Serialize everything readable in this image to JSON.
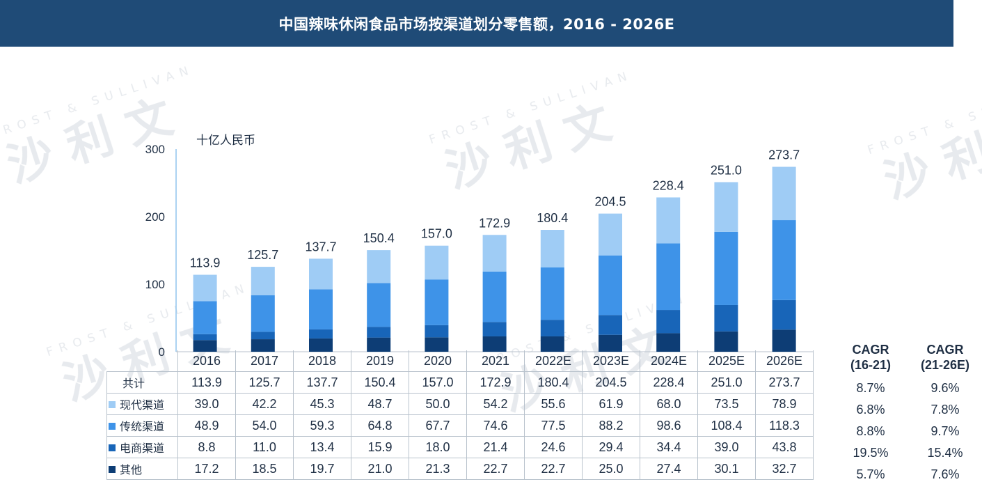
{
  "header": {
    "title": "中国辣味休闲食品市场按渠道划分零售额，2016 - 2026E"
  },
  "watermark": {
    "cn": "沙 利 文",
    "en": "FROST & SULLIVAN"
  },
  "chart_data": {
    "type": "bar",
    "stacked": true,
    "unit_label": "十亿人民币",
    "categories": [
      "2016",
      "2017",
      "2018",
      "2019",
      "2020",
      "2021",
      "2022E",
      "2023E",
      "2024E",
      "2025E",
      "2026E"
    ],
    "ylim": [
      0,
      300
    ],
    "yticks": [
      0,
      100,
      200,
      300
    ],
    "grid": false,
    "totals": [
      113.9,
      125.7,
      137.7,
      150.4,
      157.0,
      172.9,
      180.4,
      204.5,
      228.4,
      251.0,
      273.7
    ],
    "series": [
      {
        "name": "其他",
        "color": "#0d3d75",
        "values": [
          17.2,
          18.5,
          19.7,
          21.0,
          21.3,
          22.7,
          22.7,
          25.0,
          27.4,
          30.1,
          32.7
        ]
      },
      {
        "name": "电商渠道",
        "color": "#1865b8",
        "values": [
          8.8,
          11.0,
          13.4,
          15.9,
          18.0,
          21.4,
          24.6,
          29.4,
          34.4,
          39.0,
          43.8
        ]
      },
      {
        "name": "传统渠道",
        "color": "#3e93e8",
        "values": [
          48.9,
          54.0,
          59.3,
          64.8,
          67.7,
          74.6,
          77.5,
          88.2,
          98.6,
          108.4,
          118.3
        ]
      },
      {
        "name": "现代渠道",
        "color": "#9fccf5",
        "values": [
          39.0,
          42.2,
          45.3,
          48.7,
          50.0,
          54.2,
          55.6,
          61.9,
          68.0,
          73.5,
          78.9
        ]
      }
    ]
  },
  "table": {
    "rows": [
      {
        "label": "共计",
        "color": "",
        "values": [
          "113.9",
          "125.7",
          "137.7",
          "150.4",
          "157.0",
          "172.9",
          "180.4",
          "204.5",
          "228.4",
          "251.0",
          "273.7"
        ]
      },
      {
        "label": "现代渠道",
        "color": "#9fccf5",
        "values": [
          "39.0",
          "42.2",
          "45.3",
          "48.7",
          "50.0",
          "54.2",
          "55.6",
          "61.9",
          "68.0",
          "73.5",
          "78.9"
        ]
      },
      {
        "label": "传统渠道",
        "color": "#3e93e8",
        "values": [
          "48.9",
          "54.0",
          "59.3",
          "64.8",
          "67.7",
          "74.6",
          "77.5",
          "88.2",
          "98.6",
          "108.4",
          "118.3"
        ]
      },
      {
        "label": "电商渠道",
        "color": "#1865b8",
        "values": [
          "8.8",
          "11.0",
          "13.4",
          "15.9",
          "18.0",
          "21.4",
          "24.6",
          "29.4",
          "34.4",
          "39.0",
          "43.8"
        ]
      },
      {
        "label": "其他",
        "color": "#0d3d75",
        "values": [
          "17.2",
          "18.5",
          "19.7",
          "21.0",
          "21.3",
          "22.7",
          "22.7",
          "25.0",
          "27.4",
          "30.1",
          "32.7"
        ]
      }
    ]
  },
  "cagr": {
    "col1_title_line1": "CAGR",
    "col1_title_line2": "(16-21)",
    "col2_title_line1": "CAGR",
    "col2_title_line2": "(21-26E)",
    "col1": [
      "8.7%",
      "6.8%",
      "8.8%",
      "19.5%",
      "5.7%"
    ],
    "col2": [
      "9.6%",
      "7.8%",
      "9.7%",
      "15.4%",
      "7.6%"
    ]
  }
}
